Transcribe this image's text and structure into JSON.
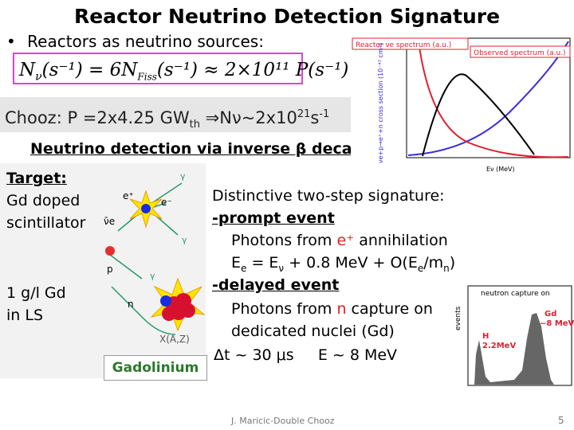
{
  "title": "Reactor Neutrino Detection Signature",
  "bullet": "Reactors as neutrino sources:",
  "equation": {
    "a": "N",
    "a_sub": "ν",
    "b": "(s⁻¹) = 6N",
    "b_sub": "Fiss",
    "c": "(s⁻¹) ≈ 2×10¹¹ P(s⁻¹)"
  },
  "chooz": {
    "a": "Chooz: P =2x4.25 GW",
    "a_sub": "th",
    "b": " ⇒Nν~2x10",
    "b_sup": "21",
    "c": "s",
    "c_sup": "-1"
  },
  "detection_heading": "Neutrino detection via inverse β decay",
  "left": {
    "target_label": "Target:",
    "target_lines": [
      "Gd doped",
      "scintillator"
    ],
    "gd_lines": [
      "1 g/l Gd",
      "in LS"
    ],
    "gadolinium": "Gadolinium"
  },
  "diagram": {
    "labels": [
      "e⁺",
      "e⁻",
      "ν̄e",
      "p",
      "n",
      "X(A,Z)",
      "γ"
    ]
  },
  "signature": {
    "heading": "Distinctive two-step signature:",
    "prompt": "-prompt event",
    "prompt_line1": [
      "Photons from ",
      "e⁺",
      " annihilation"
    ],
    "prompt_line2": [
      "E",
      "e",
      " = E",
      "ν",
      " + 0.8 MeV + O(E",
      "e",
      "/m",
      "n",
      ")"
    ],
    "delayed": "-delayed event",
    "delayed_line1": [
      "Photons from ",
      "n",
      " capture on"
    ],
    "delayed_line2": "dedicated nuclei (Gd)",
    "timing": "Δt ~ 30 μs     E ~ 8 MeV"
  },
  "spectrum_plot": {
    "legend_reactor": "Reactor νe spectrum (a.u.)",
    "legend_observed": "Observed spectrum (a.u.)",
    "y_label": "νe+p→e⁺+n cross section (10⁻⁴³ cm²)",
    "x_label": "Eν (MeV)"
  },
  "capture_plot": {
    "title": "neutron capture on",
    "y_label": "events",
    "h_label": [
      "H",
      "2.2MeV"
    ],
    "gd_label": [
      "Gd",
      "~8 MeV"
    ]
  },
  "footer": "J. Maricic-Double Chooz",
  "page": "5"
}
